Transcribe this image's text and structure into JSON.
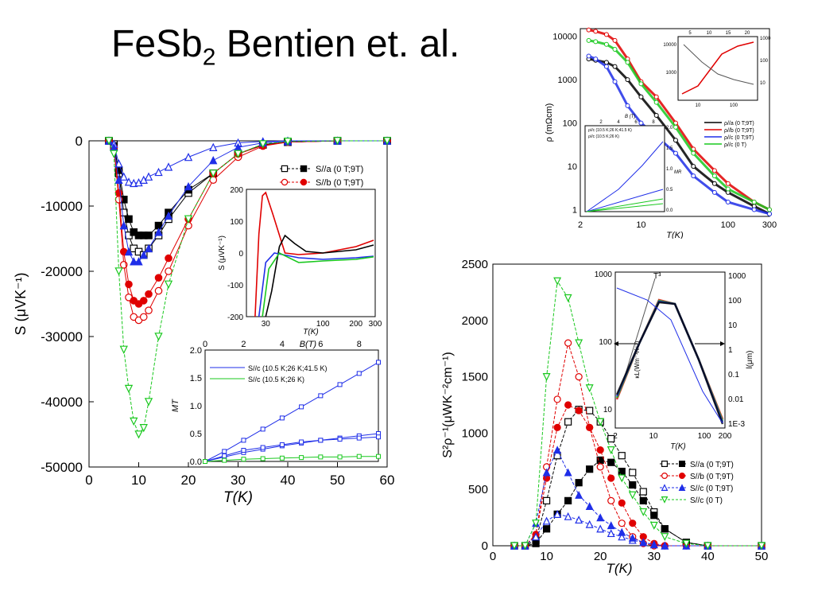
{
  "slide": {
    "title_main": "FeSb",
    "title_sub": "2",
    "title_rest": " Bentien et. al."
  },
  "colors": {
    "black": "#000000",
    "red": "#e00000",
    "blue": "#1f2ee8",
    "green": "#19c81e"
  },
  "chart_data": [
    {
      "id": "seebeck",
      "type": "line",
      "xlabel": "T(K)",
      "ylabel": "S (μVK⁻¹)",
      "xlim": [
        0,
        60
      ],
      "ylim": [
        -50000,
        0
      ],
      "xticks": [
        "0",
        "10",
        "20",
        "30",
        "40",
        "50",
        "60"
      ],
      "yticks": [
        "0",
        "-10000",
        "-20000",
        "-30000",
        "-40000",
        "-50000"
      ],
      "legend": [
        "S//a (0 T;9T)",
        "S//b (0 T;9T)",
        "S//c (0 T;9T)",
        "S//c (0 T)"
      ],
      "series": [
        {
          "name": "S//a (0 T)",
          "color": "black",
          "marker": "open-square",
          "x": [
            4,
            5,
            6,
            7,
            8,
            9,
            10,
            11,
            12,
            14,
            16,
            20,
            25,
            30,
            35,
            40,
            50,
            60
          ],
          "y": [
            0,
            -500,
            -5000,
            -11000,
            -14500,
            -16500,
            -17000,
            -17500,
            -16500,
            -14500,
            -12000,
            -8000,
            -5000,
            -2000,
            -600,
            -200,
            0,
            0
          ]
        },
        {
          "name": "S//a (9 T)",
          "color": "black",
          "marker": "filled-square",
          "x": [
            4,
            5,
            6,
            7,
            8,
            9,
            10,
            11,
            12,
            14,
            16,
            20,
            25,
            30,
            35,
            40,
            50,
            60
          ],
          "y": [
            0,
            -800,
            -4500,
            -9000,
            -12000,
            -14000,
            -14500,
            -14500,
            -14500,
            -13000,
            -11000,
            -7500,
            -5000,
            -2000,
            -600,
            -200,
            0,
            0
          ]
        },
        {
          "name": "S//b (0 T)",
          "color": "red",
          "marker": "open-circle",
          "x": [
            4,
            5,
            6,
            7,
            8,
            9,
            10,
            11,
            12,
            14,
            16,
            20,
            25,
            30,
            35,
            40,
            50,
            60
          ],
          "y": [
            0,
            -1000,
            -9000,
            -19000,
            -24000,
            -27000,
            -27500,
            -27000,
            -26000,
            -23000,
            -20000,
            -13000,
            -6000,
            -2500,
            -800,
            -200,
            0,
            0
          ]
        },
        {
          "name": "S//b (9 T)",
          "color": "red",
          "marker": "filled-circle",
          "x": [
            4,
            5,
            6,
            7,
            8,
            9,
            10,
            11,
            12,
            14,
            16,
            20,
            25,
            30,
            35,
            40,
            50,
            60
          ],
          "y": [
            0,
            -1000,
            -8000,
            -17000,
            -22000,
            -24500,
            -25000,
            -24500,
            -23500,
            -21000,
            -18000,
            -12000,
            -5000,
            -2000,
            -700,
            -200,
            0,
            0
          ]
        },
        {
          "name": "S//c (0 T)",
          "color": "blue",
          "marker": "open-triangle",
          "x": [
            4,
            5,
            6,
            7,
            8,
            9,
            10,
            11,
            12,
            14,
            16,
            20,
            25,
            30,
            35,
            40,
            50,
            60
          ],
          "y": [
            0,
            -500,
            -3500,
            -5500,
            -6300,
            -6500,
            -6400,
            -6000,
            -5500,
            -4800,
            -4000,
            -2500,
            -1000,
            -300,
            -100,
            0,
            0,
            0
          ]
        },
        {
          "name": "S//c (9 T)",
          "color": "blue",
          "marker": "filled-triangle",
          "x": [
            4,
            5,
            6,
            7,
            8,
            9,
            10,
            11,
            12,
            14,
            16,
            20,
            25,
            30,
            35,
            40,
            50,
            60
          ],
          "y": [
            0,
            -1000,
            -6000,
            -13000,
            -17000,
            -18500,
            -18500,
            -17500,
            -16500,
            -14000,
            -11500,
            -7000,
            -3000,
            -1000,
            -300,
            -100,
            0,
            0
          ]
        },
        {
          "name": "S//c (0 T) green",
          "color": "green",
          "marker": "open-triangle-down",
          "x": [
            4,
            5,
            6,
            7,
            8,
            9,
            10,
            11,
            12,
            14,
            16,
            20,
            25,
            30,
            35,
            40,
            50,
            60
          ],
          "y": [
            0,
            -2000,
            -20000,
            -32000,
            -38000,
            -43000,
            -45000,
            -44000,
            -40000,
            -30000,
            -22000,
            -12000,
            -5000,
            -2000,
            -500,
            -100,
            0,
            0
          ]
        }
      ],
      "inset_seebeck": {
        "xlabel": "T(K)",
        "ylabel": "S (μVK⁻¹)",
        "xticks": [
          "30",
          "100",
          "200",
          "300"
        ],
        "yticks": [
          "200",
          "100",
          "0",
          "-100",
          "-200"
        ],
        "ylim": [
          -200,
          200
        ]
      },
      "inset_mt": {
        "xlabel": "B(T)",
        "ylabel": "MT",
        "xticks": [
          "0",
          "2",
          "4",
          "6",
          "8"
        ],
        "yticks": [
          "0.0",
          "0.5",
          "1.0",
          "1.5",
          "2.0"
        ],
        "legend": [
          "S//c (10.5 K;26 K;41.5 K)",
          "S//c (10.5 K;26 K)"
        ],
        "series": [
          {
            "color": "blue",
            "x": [
              0,
              1,
              2,
              3,
              4,
              5,
              6,
              7,
              8,
              9
            ],
            "y": [
              0,
              0.18,
              0.38,
              0.58,
              0.78,
              0.98,
              1.18,
              1.38,
              1.58,
              1.78
            ]
          },
          {
            "color": "blue",
            "x": [
              0,
              1,
              2,
              3,
              4,
              5,
              6,
              7,
              8,
              9
            ],
            "y": [
              0,
              0.08,
              0.16,
              0.22,
              0.28,
              0.33,
              0.38,
              0.42,
              0.46,
              0.5
            ]
          },
          {
            "color": "blue",
            "x": [
              0,
              1,
              2,
              3,
              4,
              5,
              6,
              7,
              8,
              9
            ],
            "y": [
              0,
              0.1,
              0.2,
              0.25,
              0.3,
              0.35,
              0.38,
              0.4,
              0.42,
              0.44
            ]
          },
          {
            "color": "green",
            "x": [
              0,
              1,
              2,
              3,
              4,
              5,
              6,
              7,
              8,
              9
            ],
            "y": [
              0,
              0.02,
              0.04,
              0.05,
              0.06,
              0.07,
              0.08,
              0.08,
              0.09,
              0.09
            ]
          }
        ]
      }
    },
    {
      "id": "resistivity",
      "type": "line",
      "xlabel": "T(K)",
      "ylabel": "ρ (mΩcm)",
      "xticks": [
        "2",
        "10",
        "100",
        "300"
      ],
      "yticks": [
        "10000",
        "1000",
        "100",
        "10",
        "1"
      ],
      "legend": [
        "ρ//a (0 T;9T)",
        "ρ//b (0 T;9T)",
        "ρ//c (0 T;9T)",
        "ρ//c (0 T)"
      ],
      "series": [
        {
          "color": "black",
          "x": [
            2.5,
            3,
            4,
            5,
            7,
            10,
            15,
            25,
            40,
            70,
            100,
            200,
            300
          ],
          "y": [
            3000,
            2800,
            2500,
            2000,
            1000,
            400,
            150,
            40,
            10,
            4,
            2.5,
            1.2,
            0.8
          ]
        },
        {
          "color": "red",
          "x": [
            2.5,
            3,
            4,
            5,
            7,
            10,
            15,
            25,
            40,
            70,
            100,
            200,
            300
          ],
          "y": [
            14000,
            13000,
            11000,
            8000,
            3000,
            900,
            400,
            100,
            25,
            8,
            4,
            1.5,
            1
          ]
        },
        {
          "color": "blue",
          "x": [
            2.5,
            3,
            4,
            5,
            7,
            10,
            15,
            25,
            40,
            70,
            100,
            200,
            300
          ],
          "y": [
            3500,
            3000,
            2000,
            900,
            250,
            100,
            50,
            20,
            6,
            2.5,
            1.5,
            1,
            0.8
          ]
        },
        {
          "color": "green",
          "x": [
            2.5,
            3,
            4,
            5,
            7,
            10,
            15,
            25,
            40,
            70,
            100,
            200,
            300
          ],
          "y": [
            8000,
            7500,
            6500,
            5000,
            2500,
            800,
            300,
            80,
            20,
            6,
            3,
            1.5,
            1
          ]
        }
      ],
      "inset_top": {
        "xticks": [
          "10",
          "100"
        ],
        "xticks_top": [
          "5",
          "10",
          "15",
          "20"
        ],
        "yticks_left": [
          "10000",
          "1000"
        ],
        "yticks_right": [
          "1000",
          "100",
          "10"
        ]
      },
      "inset_mr": {
        "xlabel": "B (T)",
        "ylabel": "MR",
        "xticks": [
          "2",
          "4",
          "6",
          "8"
        ],
        "yticks": [
          "0.0",
          "0.5",
          "1.0",
          "1.5",
          "2.0"
        ],
        "legend": [
          "ρ//c (10.5 K;26 K;41.5 K)",
          "ρ//c (10.5 K;26 K)"
        ]
      }
    },
    {
      "id": "powerfactor",
      "type": "line",
      "xlabel": "T(K)",
      "ylabel": "S²ρ⁻¹(μWK⁻²cm⁻¹)",
      "xlim": [
        0,
        50
      ],
      "ylim": [
        0,
        2500
      ],
      "xticks": [
        "0",
        "10",
        "20",
        "30",
        "40",
        "50"
      ],
      "yticks": [
        "0",
        "500",
        "1000",
        "1500",
        "2000",
        "2500"
      ],
      "legend": [
        "S//a (0 T;9T)",
        "S//b (0 T;9T)",
        "S//c (0 T;9T)",
        "S//c (0 T)"
      ],
      "series": [
        {
          "color": "black",
          "marker": "open-square",
          "x": [
            4,
            6,
            8,
            10,
            12,
            14,
            16,
            18,
            20,
            22,
            24,
            26,
            28,
            30,
            32,
            36,
            40,
            50
          ],
          "y": [
            0,
            0,
            50,
            400,
            800,
            1100,
            1210,
            1200,
            1100,
            950,
            800,
            650,
            480,
            300,
            150,
            30,
            0,
            0
          ]
        },
        {
          "color": "black",
          "marker": "filled-square",
          "x": [
            4,
            6,
            8,
            10,
            12,
            14,
            16,
            18,
            20,
            22,
            24,
            26,
            28,
            30,
            32,
            36,
            40,
            50
          ],
          "y": [
            0,
            0,
            20,
            150,
            280,
            400,
            560,
            680,
            760,
            740,
            660,
            540,
            400,
            270,
            150,
            30,
            0,
            0
          ]
        },
        {
          "color": "red",
          "marker": "open-circle",
          "x": [
            4,
            6,
            8,
            10,
            12,
            14,
            16,
            18,
            20,
            22,
            24,
            26,
            28,
            30,
            32,
            36,
            40,
            50
          ],
          "y": [
            0,
            0,
            100,
            700,
            1300,
            1800,
            1500,
            1050,
            700,
            400,
            200,
            80,
            20,
            0,
            0,
            0,
            0,
            0
          ]
        },
        {
          "color": "red",
          "marker": "filled-circle",
          "x": [
            4,
            6,
            8,
            10,
            12,
            14,
            16,
            18,
            20,
            22,
            24,
            26,
            28,
            30,
            32,
            36,
            40,
            50
          ],
          "y": [
            0,
            0,
            100,
            600,
            1050,
            1250,
            1200,
            1050,
            850,
            600,
            380,
            200,
            80,
            20,
            0,
            0,
            0,
            0
          ]
        },
        {
          "color": "blue",
          "marker": "open-triangle",
          "x": [
            4,
            6,
            8,
            10,
            12,
            14,
            16,
            18,
            20,
            22,
            24,
            26,
            28,
            30,
            32,
            36,
            40,
            50
          ],
          "y": [
            0,
            0,
            80,
            220,
            280,
            260,
            230,
            190,
            150,
            110,
            80,
            50,
            30,
            10,
            0,
            0,
            0,
            0
          ]
        },
        {
          "color": "blue",
          "marker": "filled-triangle",
          "x": [
            4,
            6,
            8,
            10,
            12,
            14,
            16,
            18,
            20,
            22,
            24,
            26,
            28,
            30,
            32,
            36,
            40,
            50
          ],
          "y": [
            0,
            0,
            200,
            650,
            850,
            650,
            450,
            350,
            250,
            180,
            120,
            70,
            30,
            10,
            0,
            0,
            0,
            0
          ]
        },
        {
          "color": "green",
          "marker": "open-triangle-down",
          "x": [
            4,
            6,
            8,
            10,
            12,
            14,
            16,
            18,
            20,
            22,
            24,
            26,
            28,
            30,
            32,
            36,
            40,
            50
          ],
          "y": [
            0,
            0,
            200,
            1500,
            2350,
            2200,
            1800,
            1400,
            1100,
            850,
            600,
            450,
            300,
            180,
            80,
            20,
            0,
            0
          ]
        }
      ],
      "inset_kappa": {
        "xlabel": "T(K)",
        "ylabel": "κL(Wm⁻¹K⁻¹)",
        "ylabel_right": "l(μm)",
        "annotation": "T³",
        "xticks": [
          "2",
          "10",
          "100",
          "200"
        ],
        "yticks_left": [
          "1000",
          "100",
          "10"
        ],
        "yticks_right": [
          "1000",
          "100",
          "10",
          "1",
          "0.1",
          "0.01",
          "1E-3"
        ]
      }
    }
  ]
}
